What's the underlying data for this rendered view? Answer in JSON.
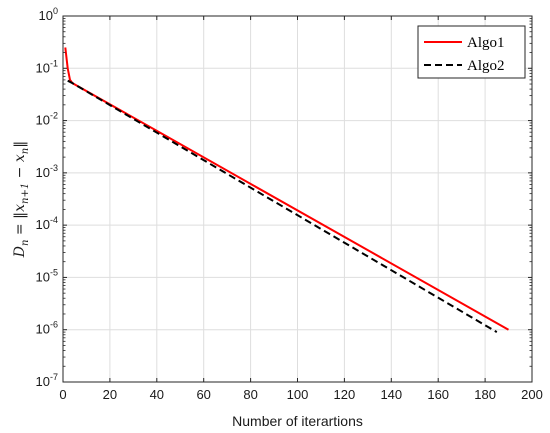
{
  "chart_data": {
    "type": "line",
    "xlabel": "Number of iterartions",
    "ylabel": "D_n = ||x_{n+1} − x_n||",
    "xlim": [
      0,
      200
    ],
    "ylim_log10": [
      -7,
      0
    ],
    "y_scale": "log",
    "grid": true,
    "legend_position": "top-right",
    "x_ticks": [
      0,
      20,
      40,
      60,
      80,
      100,
      120,
      140,
      160,
      180,
      200
    ],
    "y_ticks": [
      {
        "base": "10",
        "exp": "0",
        "value": 1
      },
      {
        "base": "10",
        "exp": "-1",
        "value": 0.1
      },
      {
        "base": "10",
        "exp": "-2",
        "value": 0.01
      },
      {
        "base": "10",
        "exp": "-3",
        "value": 0.001
      },
      {
        "base": "10",
        "exp": "-4",
        "value": 0.0001
      },
      {
        "base": "10",
        "exp": "-5",
        "value": 1e-05
      },
      {
        "base": "10",
        "exp": "-6",
        "value": 1e-06
      },
      {
        "base": "10",
        "exp": "-7",
        "value": 1e-07
      }
    ],
    "series": [
      {
        "name": "Algo1",
        "color": "#ff0000",
        "dash": "solid",
        "points": [
          [
            1,
            0.25
          ],
          [
            2,
            0.1
          ],
          [
            3,
            0.06
          ],
          [
            4,
            0.052
          ],
          [
            190,
            1e-06
          ]
        ]
      },
      {
        "name": "Algo2",
        "color": "#000000",
        "dash": "dashed",
        "points": [
          [
            2,
            0.058
          ],
          [
            4,
            0.052
          ],
          [
            185,
            9e-07
          ]
        ]
      }
    ]
  }
}
